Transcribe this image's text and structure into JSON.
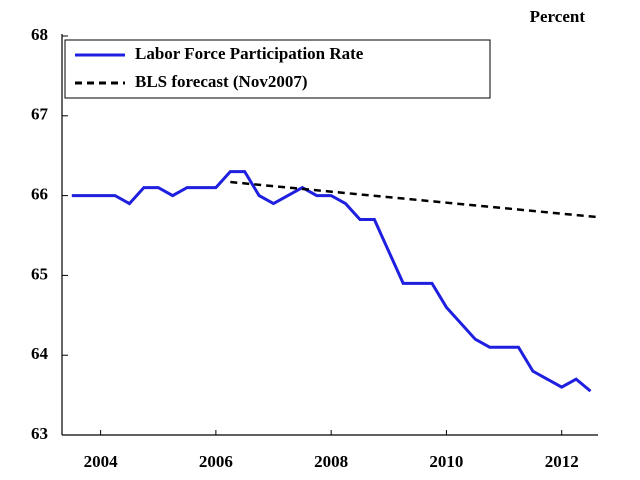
{
  "chart_data": {
    "type": "line",
    "unit_label": "Percent",
    "series": [
      {
        "name": "Labor Force Participation Rate",
        "color": "#1f1fe0",
        "dash": "solid",
        "x": [
          2004.0,
          2004.25,
          2004.5,
          2004.75,
          2005.0,
          2005.25,
          2005.5,
          2005.75,
          2006.0,
          2006.25,
          2006.5,
          2006.75,
          2007.0,
          2007.25,
          2007.5,
          2007.75,
          2008.0,
          2008.25,
          2008.5,
          2008.75,
          2009.0,
          2009.25,
          2009.5,
          2009.75,
          2010.0,
          2010.25,
          2010.5,
          2010.75,
          2011.0,
          2011.25,
          2011.5,
          2011.75,
          2012.0,
          2012.25,
          2012.5,
          2012.75,
          2013.0
        ],
        "values": [
          66.0,
          66.0,
          66.0,
          66.0,
          65.9,
          66.1,
          66.1,
          66.0,
          66.1,
          66.1,
          66.1,
          66.3,
          66.3,
          66.0,
          65.9,
          66.0,
          66.1,
          66.0,
          66.0,
          65.9,
          65.7,
          65.7,
          65.3,
          64.9,
          64.9,
          64.9,
          64.6,
          64.4,
          64.2,
          64.1,
          64.1,
          64.1,
          63.8,
          63.7,
          63.6,
          63.7,
          63.55
        ]
      },
      {
        "name": "BLS forecast (Nov2007)",
        "color": "#000000",
        "dash": "dashed",
        "x": [
          2006.75,
          2013.13
        ],
        "values": [
          66.17,
          65.73
        ]
      }
    ],
    "xlim": [
      2003.83,
      2013.13
    ],
    "xticks": [
      {
        "value": 2004.5,
        "label": "2004"
      },
      {
        "value": 2006.5,
        "label": "2006"
      },
      {
        "value": 2008.5,
        "label": "2008"
      },
      {
        "value": 2010.5,
        "label": "2010"
      },
      {
        "value": 2012.5,
        "label": "2012"
      }
    ],
    "ylim": [
      63,
      68
    ],
    "yticks": [
      63,
      64,
      65,
      66,
      67,
      68
    ],
    "legend": "top-left"
  }
}
